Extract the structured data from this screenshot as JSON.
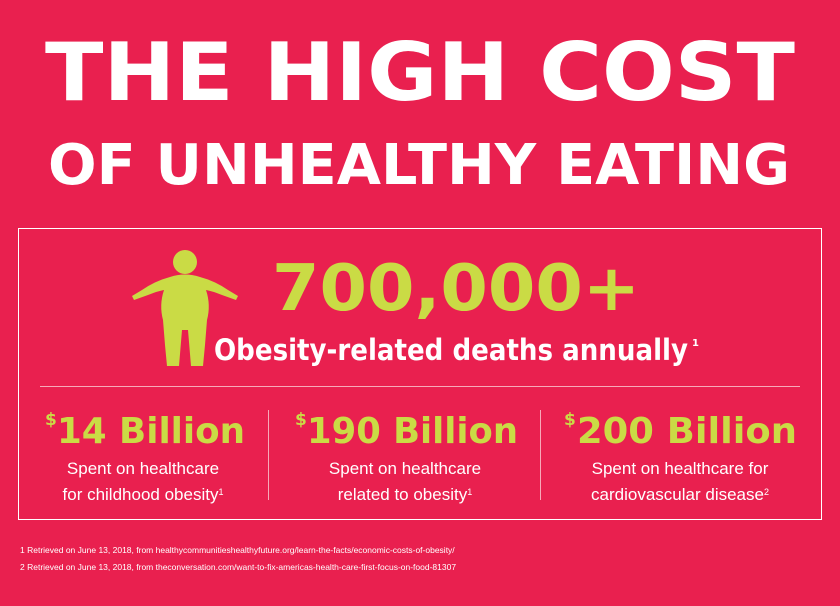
{
  "header": {
    "title_lines": [
      "THE HIGH COST",
      "OF UNHEALTHY EATING"
    ]
  },
  "hero": {
    "value": "700,000+",
    "label": "Obesity-related deaths annually",
    "note": "1"
  },
  "stats": [
    {
      "currency": "$",
      "amount": "14 Billion",
      "lines": [
        "Spent on healthcare",
        "for childhood obesity"
      ],
      "note": "1"
    },
    {
      "currency": "$",
      "amount": "190 Billion",
      "lines": [
        "Spent on healthcare",
        "related to obesity"
      ],
      "note": "1"
    },
    {
      "currency": "$",
      "amount": "200 Billion",
      "lines": [
        "Spent on healthcare for",
        "cardiovascular disease"
      ],
      "note": "2"
    }
  ],
  "footnotes": [
    "1 Retrieved on June 13, 2018, from healthycommunitieshealthyfuture.org/learn-the-facts/economic-costs-of-obesity/",
    "2 Retrieved on June 13, 2018, from theconversation.com/want-to-fix-americas-health-care-first-focus-on-food-81307"
  ]
}
